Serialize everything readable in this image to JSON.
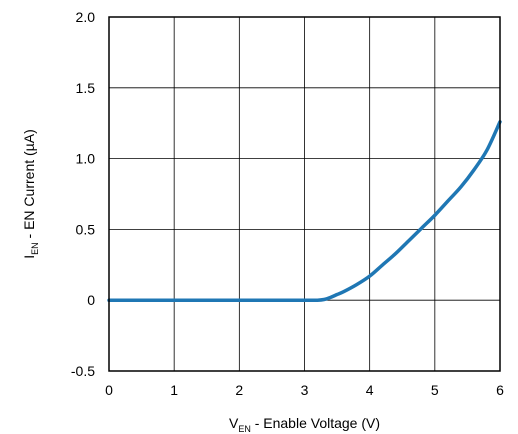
{
  "chart_data": {
    "type": "line",
    "xlabel": {
      "main": "V",
      "sub": "EN",
      "rest": " - Enable Voltage (V)"
    },
    "ylabel": {
      "main": "I",
      "sub": "EN",
      "rest": " - EN Current (µA)"
    },
    "xlim": [
      0,
      6
    ],
    "ylim": [
      -0.5,
      2.0
    ],
    "xticks": [
      0,
      1,
      2,
      3,
      4,
      5,
      6
    ],
    "xtick_labels": [
      "0",
      "1",
      "2",
      "3",
      "4",
      "5",
      "6"
    ],
    "yticks": [
      -0.5,
      0,
      0.5,
      1.0,
      1.5,
      2.0
    ],
    "ytick_labels": [
      "-0.5",
      "0",
      "0.5",
      "1.0",
      "1.5",
      "2.0"
    ],
    "grid": true,
    "series": [
      {
        "color": "#1f77b4",
        "x": [
          0,
          1,
          2,
          3,
          3.2,
          3.3,
          3.4,
          3.5,
          3.6,
          3.8,
          4.0,
          4.2,
          4.4,
          4.6,
          4.8,
          5.0,
          5.2,
          5.4,
          5.6,
          5.8,
          6.0
        ],
        "y": [
          0,
          0,
          0,
          0,
          0,
          0.005,
          0.02,
          0.04,
          0.06,
          0.11,
          0.17,
          0.25,
          0.33,
          0.42,
          0.51,
          0.6,
          0.7,
          0.8,
          0.92,
          1.06,
          1.26
        ]
      }
    ]
  }
}
